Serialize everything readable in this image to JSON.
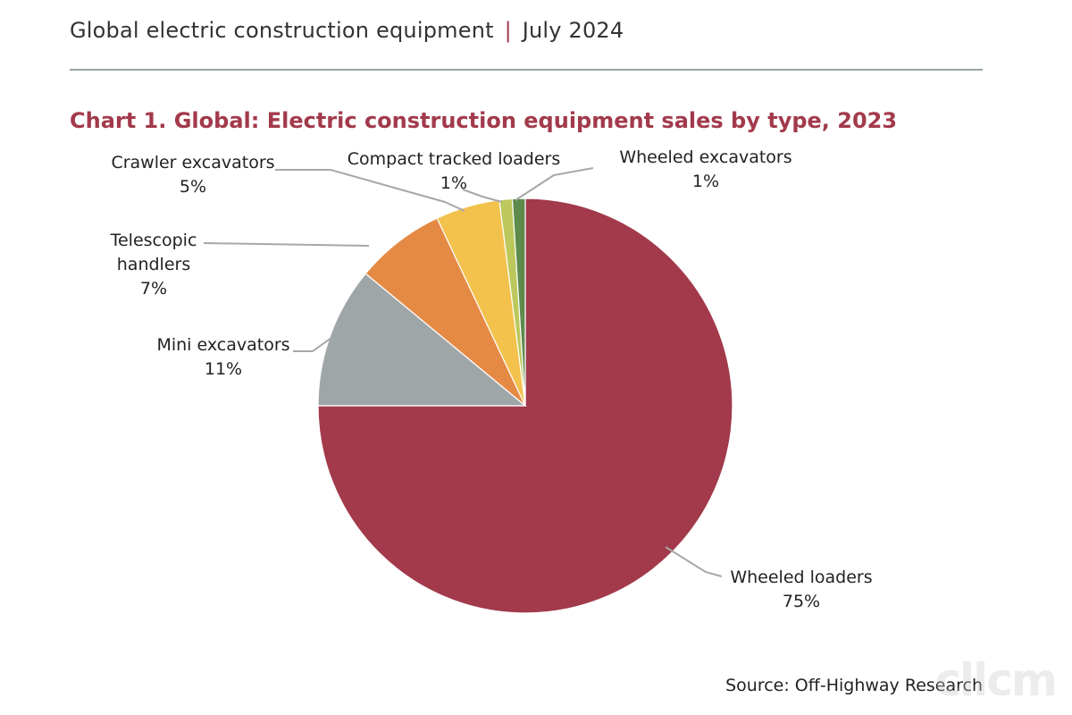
{
  "header": {
    "topic": "Global electric construction equipment",
    "separator": "|",
    "date": "July 2024"
  },
  "source": "Source: Off-Highway Research",
  "watermark": "cllcm",
  "colors": {
    "accent": "#a23a4b",
    "rule": "#9aa3a6",
    "leader": "#a8a8a8"
  },
  "chart_data": {
    "type": "pie",
    "title": "Chart 1. Global: Electric construction equipment sales by type, 2023",
    "unit": "%",
    "start_angle_deg": 0,
    "direction": "clockwise",
    "slices": [
      {
        "label": "Wheeled loaders",
        "label_lines": [
          "Wheeled loaders"
        ],
        "value": 75,
        "value_label": "75%",
        "color": "#a23a4b"
      },
      {
        "label": "Mini excavators",
        "label_lines": [
          "Mini excavators"
        ],
        "value": 11,
        "value_label": "11%",
        "color": "#9fa6a8"
      },
      {
        "label": "Telescopic handlers",
        "label_lines": [
          "Telescopic",
          "handlers"
        ],
        "value": 7,
        "value_label": "7%",
        "color": "#e58a45"
      },
      {
        "label": "Crawler excavators",
        "label_lines": [
          "Crawler excavators"
        ],
        "value": 5,
        "value_label": "5%",
        "color": "#f2c24d"
      },
      {
        "label": "Compact tracked loaders",
        "label_lines": [
          "Compact tracked loaders"
        ],
        "value": 1,
        "value_label": "1%",
        "color": "#bcc85c"
      },
      {
        "label": "Wheeled excavators",
        "label_lines": [
          "Wheeled excavators"
        ],
        "value": 1,
        "value_label": "1%",
        "color": "#5e8b4c"
      }
    ]
  }
}
